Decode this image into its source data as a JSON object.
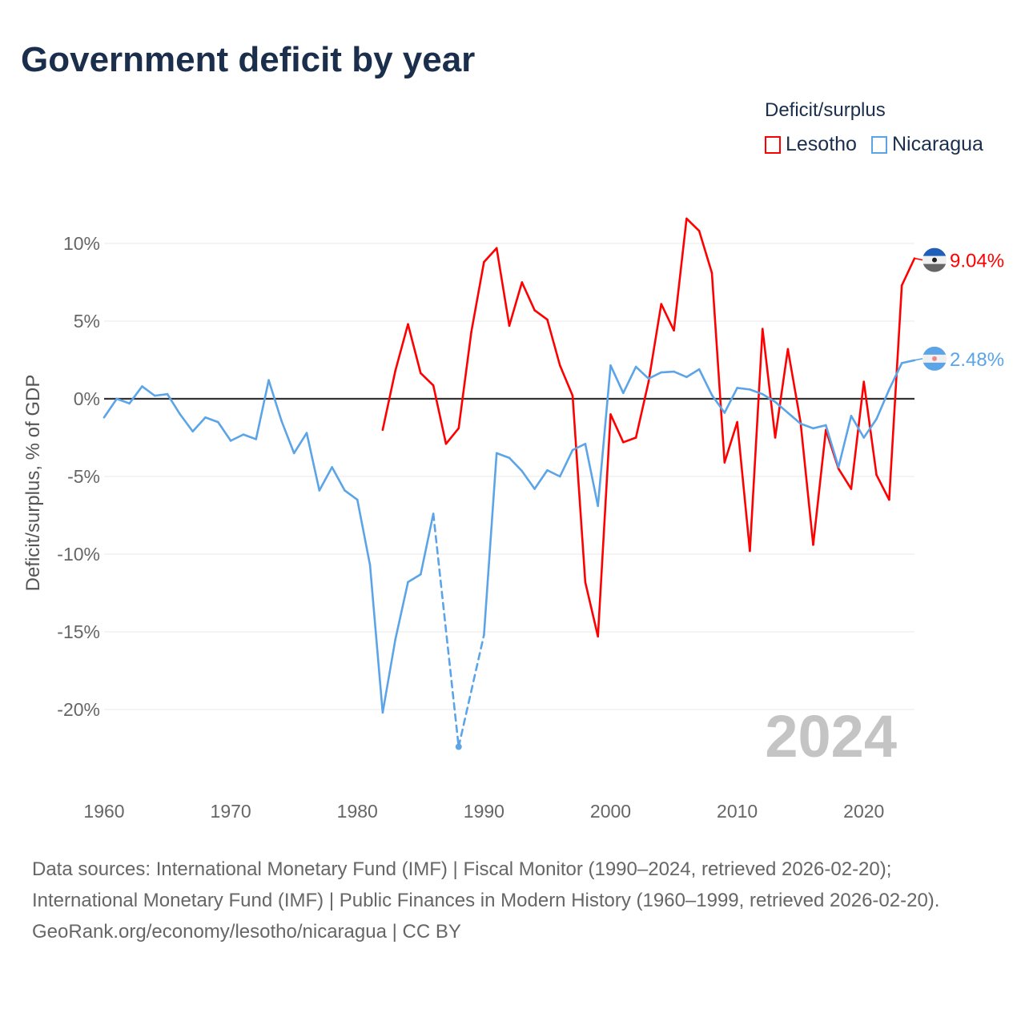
{
  "chart_data": {
    "type": "line",
    "title": "Government deficit by year",
    "ylabel": "Deficit/surplus, % of GDP",
    "xlabel": "",
    "legend_title": "Deficit/surplus",
    "legend_placement": "top-right",
    "xlim": [
      1960,
      2024
    ],
    "ylim": [
      -23,
      12
    ],
    "x_ticks": [
      1960,
      1970,
      1980,
      1990,
      2000,
      2010,
      2020
    ],
    "x_tick_labels": [
      "1960",
      "1970",
      "1980",
      "1990",
      "2000",
      "2010",
      "2020"
    ],
    "y_ticks": [
      10,
      5,
      0,
      -5,
      -10,
      -15,
      -20
    ],
    "y_tick_labels": [
      "10%",
      "5%",
      "0%",
      "-5%",
      "-10%",
      "-15%",
      "-20%"
    ],
    "year_watermark": "2024",
    "start_year": 1960,
    "series": [
      {
        "name": "Lesotho",
        "color": "#ff0000",
        "end_label": "9.04%",
        "flag": "lesotho-flag",
        "values": [
          null,
          null,
          null,
          null,
          null,
          null,
          null,
          null,
          null,
          null,
          null,
          null,
          null,
          null,
          null,
          null,
          null,
          null,
          null,
          null,
          null,
          null,
          -2.0,
          1.8,
          4.8,
          1.65,
          0.86,
          -2.9,
          -1.9,
          4.3,
          8.8,
          9.7,
          4.7,
          7.5,
          5.7,
          5.1,
          2.15,
          0.2,
          -11.8,
          -15.3,
          -1.0,
          -2.8,
          -2.5,
          1.1,
          6.1,
          4.4,
          11.6,
          10.8,
          8.1,
          -4.1,
          -1.5,
          -9.8,
          4.5,
          -2.5,
          3.2,
          -1.5,
          -9.4,
          -2.0,
          -4.5,
          -5.8,
          1.1,
          -4.9,
          -6.5,
          7.3,
          9.04
        ]
      },
      {
        "name": "Nicaragua",
        "color": "#5ba4e8",
        "end_label": "2.48%",
        "flag": "nicaragua-flag",
        "values": [
          -1.2,
          0.0,
          -0.3,
          0.8,
          0.2,
          0.3,
          -1.0,
          -2.1,
          -1.2,
          -1.5,
          -2.7,
          -2.3,
          -2.6,
          1.2,
          -1.4,
          -3.5,
          -2.2,
          -5.9,
          -4.4,
          -5.9,
          -6.5,
          -10.7,
          -20.2,
          -15.5,
          -11.8,
          -11.3,
          -7.4,
          null,
          -22.4,
          null,
          -15.2,
          -3.5,
          -3.8,
          -4.65,
          -5.8,
          -4.6,
          -5.0,
          -3.3,
          -2.9,
          -6.9,
          2.15,
          0.37,
          2.06,
          1.3,
          1.7,
          1.75,
          1.4,
          1.9,
          0.24,
          -0.9,
          0.7,
          0.6,
          0.3,
          -0.2,
          -0.9,
          -1.6,
          -1.9,
          -1.7,
          -4.4,
          -1.1,
          -2.5,
          -1.3,
          0.6,
          2.3,
          2.48
        ]
      }
    ]
  },
  "footer": {
    "sources": "Data sources: International Monetary Fund (IMF) | Fiscal Monitor (1990–2024, retrieved 2026-02-20); International Monetary Fund (IMF) | Public Finances in Modern History (1960–1999, retrieved 2026-02-20).",
    "credit": "GeoRank.org/economy/lesotho/nicaragua | CC BY"
  }
}
